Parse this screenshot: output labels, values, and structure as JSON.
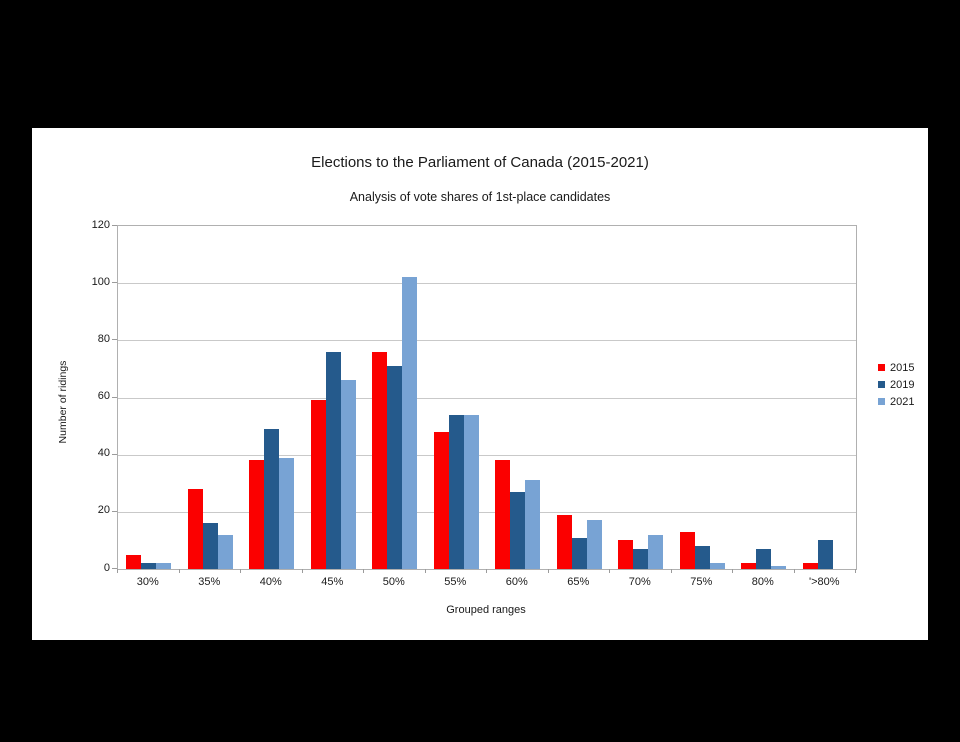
{
  "chart_data": {
    "type": "bar",
    "title": "Elections to the Parliament of Canada (2015-2021)",
    "subtitle": "Analysis of vote shares of 1st-place candidates",
    "xlabel": "Grouped ranges",
    "ylabel": "Number of ridings",
    "categories": [
      "30%",
      "35%",
      "40%",
      "45%",
      "50%",
      "55%",
      "60%",
      "65%",
      "70%",
      "75%",
      "80%",
      "'>80%"
    ],
    "series": [
      {
        "name": "2015",
        "color": "#fb0000",
        "values": [
          5,
          28,
          38,
          59,
          76,
          48,
          38,
          19,
          10,
          13,
          2,
          2
        ]
      },
      {
        "name": "2019",
        "color": "#255a8c",
        "values": [
          2,
          16,
          49,
          76,
          71,
          54,
          27,
          11,
          7,
          8,
          7,
          10
        ]
      },
      {
        "name": "2021",
        "color": "#78a3d4",
        "values": [
          2,
          12,
          39,
          66,
          102,
          54,
          31,
          17,
          12,
          2,
          1,
          0
        ]
      }
    ],
    "ylim": [
      0,
      120
    ],
    "ytick_step": 20,
    "grid": true,
    "legend_position": "right",
    "colors": {
      "background": "#000000",
      "card": "#ffffff",
      "gridline": "#c9c9c9",
      "axis": "#b0b0b0",
      "text": "#1a1a1a"
    }
  }
}
